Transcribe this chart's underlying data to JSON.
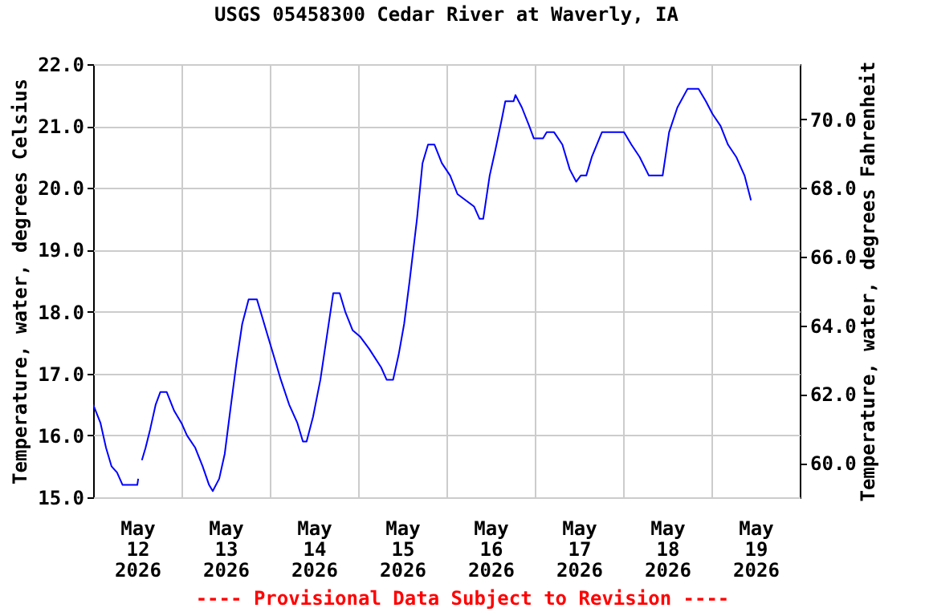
{
  "chart_data": {
    "type": "line",
    "title": "USGS 05458300 Cedar River at Waverly, IA",
    "ylabel": "Temperature, water, degrees Celsius",
    "y2label": "Temperature, water, degrees Fahrenheit",
    "annotations": [
      "---- Provisional Data Subject to Revision ----"
    ],
    "x": [
      "2026-05-12T00:00",
      "2026-05-12T02:00",
      "2026-05-12T03:30",
      "2026-05-12T05:00",
      "2026-05-12T06:30",
      "2026-05-12T08:00",
      "2026-05-12T12:00",
      "2026-05-12T12:15",
      "2026-05-12T12:45",
      "2026-05-12T13:15",
      "2026-05-12T14:15",
      "2026-05-12T15:30",
      "2026-05-12T17:00",
      "2026-05-12T18:15",
      "2026-05-12T20:00",
      "2026-05-12T22:00",
      "2026-05-13T00:00",
      "2026-05-13T01:30",
      "2026-05-13T03:45",
      "2026-05-13T05:45",
      "2026-05-13T07:30",
      "2026-05-13T08:30",
      "2026-05-13T10:15",
      "2026-05-13T11:45",
      "2026-05-13T13:15",
      "2026-05-13T15:00",
      "2026-05-13T16:30",
      "2026-05-13T18:15",
      "2026-05-13T20:30",
      "2026-05-13T22:00",
      "2026-05-13T23:30",
      "2026-05-14T01:00",
      "2026-05-14T03:00",
      "2026-05-14T05:15",
      "2026-05-14T07:30",
      "2026-05-14T09:00",
      "2026-05-14T10:00",
      "2026-05-14T11:45",
      "2026-05-14T13:45",
      "2026-05-14T15:30",
      "2026-05-14T17:15",
      "2026-05-14T19:00",
      "2026-05-14T20:30",
      "2026-05-14T22:30",
      "2026-05-15T00:30",
      "2026-05-15T03:00",
      "2026-05-15T06:15",
      "2026-05-15T07:45",
      "2026-05-15T09:30",
      "2026-05-15T11:00",
      "2026-05-15T12:30",
      "2026-05-15T14:00",
      "2026-05-15T16:00",
      "2026-05-15T17:30",
      "2026-05-15T19:00",
      "2026-05-15T20:45",
      "2026-05-15T22:45",
      "2026-05-16T01:00",
      "2026-05-16T03:00",
      "2026-05-16T05:15",
      "2026-05-16T07:30",
      "2026-05-16T09:00",
      "2026-05-16T10:00",
      "2026-05-16T11:45",
      "2026-05-16T13:15",
      "2026-05-16T15:00",
      "2026-05-16T16:00",
      "2026-05-16T18:15",
      "2026-05-16T18:45",
      "2026-05-16T20:30",
      "2026-05-16T22:30",
      "2026-05-16T23:45",
      "2026-05-17T02:15",
      "2026-05-17T03:15",
      "2026-05-17T05:15",
      "2026-05-17T07:30",
      "2026-05-17T09:30",
      "2026-05-17T11:15",
      "2026-05-17T12:30",
      "2026-05-17T14:00",
      "2026-05-17T15:30",
      "2026-05-17T18:15",
      "2026-05-18T00:15",
      "2026-05-18T02:15",
      "2026-05-18T04:30",
      "2026-05-18T07:00",
      "2026-05-18T10:45",
      "2026-05-18T12:30",
      "2026-05-18T14:45",
      "2026-05-18T17:30",
      "2026-05-18T20:30",
      "2026-05-18T22:30",
      "2026-05-19T00:15",
      "2026-05-19T02:30",
      "2026-05-19T04:30",
      "2026-05-19T06:45",
      "2026-05-19T09:00",
      "2026-05-19T10:45"
    ],
    "series": [
      {
        "color": "#0000ff",
        "values": [
          16.5,
          16.2,
          15.8,
          15.5,
          15.4,
          15.2,
          15.2,
          15.3,
          null,
          15.6,
          15.8,
          16.1,
          16.5,
          16.7,
          16.7,
          16.4,
          16.2,
          16.0,
          15.8,
          15.5,
          15.2,
          15.1,
          15.3,
          15.7,
          16.4,
          17.2,
          17.8,
          18.2,
          18.2,
          17.9,
          17.6,
          17.3,
          16.9,
          16.5,
          16.2,
          15.9,
          15.9,
          16.3,
          16.9,
          17.6,
          18.3,
          18.3,
          18.0,
          17.7,
          17.6,
          17.4,
          17.1,
          16.9,
          16.9,
          17.3,
          17.8,
          18.5,
          19.5,
          20.4,
          20.7,
          20.7,
          20.4,
          20.2,
          19.9,
          19.8,
          19.7,
          19.5,
          19.5,
          20.2,
          20.6,
          21.1,
          21.4,
          21.4,
          21.5,
          21.3,
          21.0,
          20.8,
          20.8,
          20.9,
          20.9,
          20.7,
          20.3,
          20.1,
          20.2,
          20.2,
          20.5,
          20.9,
          20.9,
          20.7,
          20.5,
          20.2,
          20.2,
          20.9,
          21.3,
          21.6,
          21.6,
          21.4,
          21.2,
          21.0,
          20.7,
          20.5,
          20.2,
          19.8
        ]
      }
    ],
    "xlim": [
      "2026-05-12T00:00",
      "2026-05-20T00:00"
    ],
    "xticks": [
      {
        "value": "2026-05-12T12:00",
        "label": "May 12 2026"
      },
      {
        "value": "2026-05-13T12:00",
        "label": "May 13 2026"
      },
      {
        "value": "2026-05-14T12:00",
        "label": "May 14 2026"
      },
      {
        "value": "2026-05-15T12:00",
        "label": "May 15 2026"
      },
      {
        "value": "2026-05-16T12:00",
        "label": "May 16 2026"
      },
      {
        "value": "2026-05-17T12:00",
        "label": "May 17 2026"
      },
      {
        "value": "2026-05-18T12:00",
        "label": "May 18 2026"
      },
      {
        "value": "2026-05-19T12:00",
        "label": "May 19 2026"
      },
      {
        "value": "2026-05-13T00:00",
        "label": null
      },
      {
        "value": "2026-05-14T00:00",
        "label": null
      },
      {
        "value": "2026-05-15T00:00",
        "label": null
      },
      {
        "value": "2026-05-16T00:00",
        "label": null
      },
      {
        "value": "2026-05-17T00:00",
        "label": null
      },
      {
        "value": "2026-05-18T00:00",
        "label": null
      },
      {
        "value": "2026-05-19T00:00",
        "label": null
      }
    ],
    "ylim": [
      15,
      22
    ],
    "yticks": [
      {
        "value": 15,
        "label": "15.0"
      },
      {
        "value": 16,
        "label": "16.0"
      },
      {
        "value": 17,
        "label": "17.0"
      },
      {
        "value": 18,
        "label": "18.0"
      },
      {
        "value": 19,
        "label": "19.0"
      },
      {
        "value": 20,
        "label": "20.0"
      },
      {
        "value": 21,
        "label": "21.0"
      },
      {
        "value": 22,
        "label": "22.0"
      }
    ],
    "y2lim": [
      59,
      71.6
    ],
    "y2ticks": [
      {
        "value": 60,
        "label": "60.0"
      },
      {
        "value": 62,
        "label": "62.0"
      },
      {
        "value": 64,
        "label": "64.0"
      },
      {
        "value": 66,
        "label": "66.0"
      },
      {
        "value": 68,
        "label": "68.0"
      },
      {
        "value": 70,
        "label": "70.0"
      }
    ],
    "grid": true
  }
}
